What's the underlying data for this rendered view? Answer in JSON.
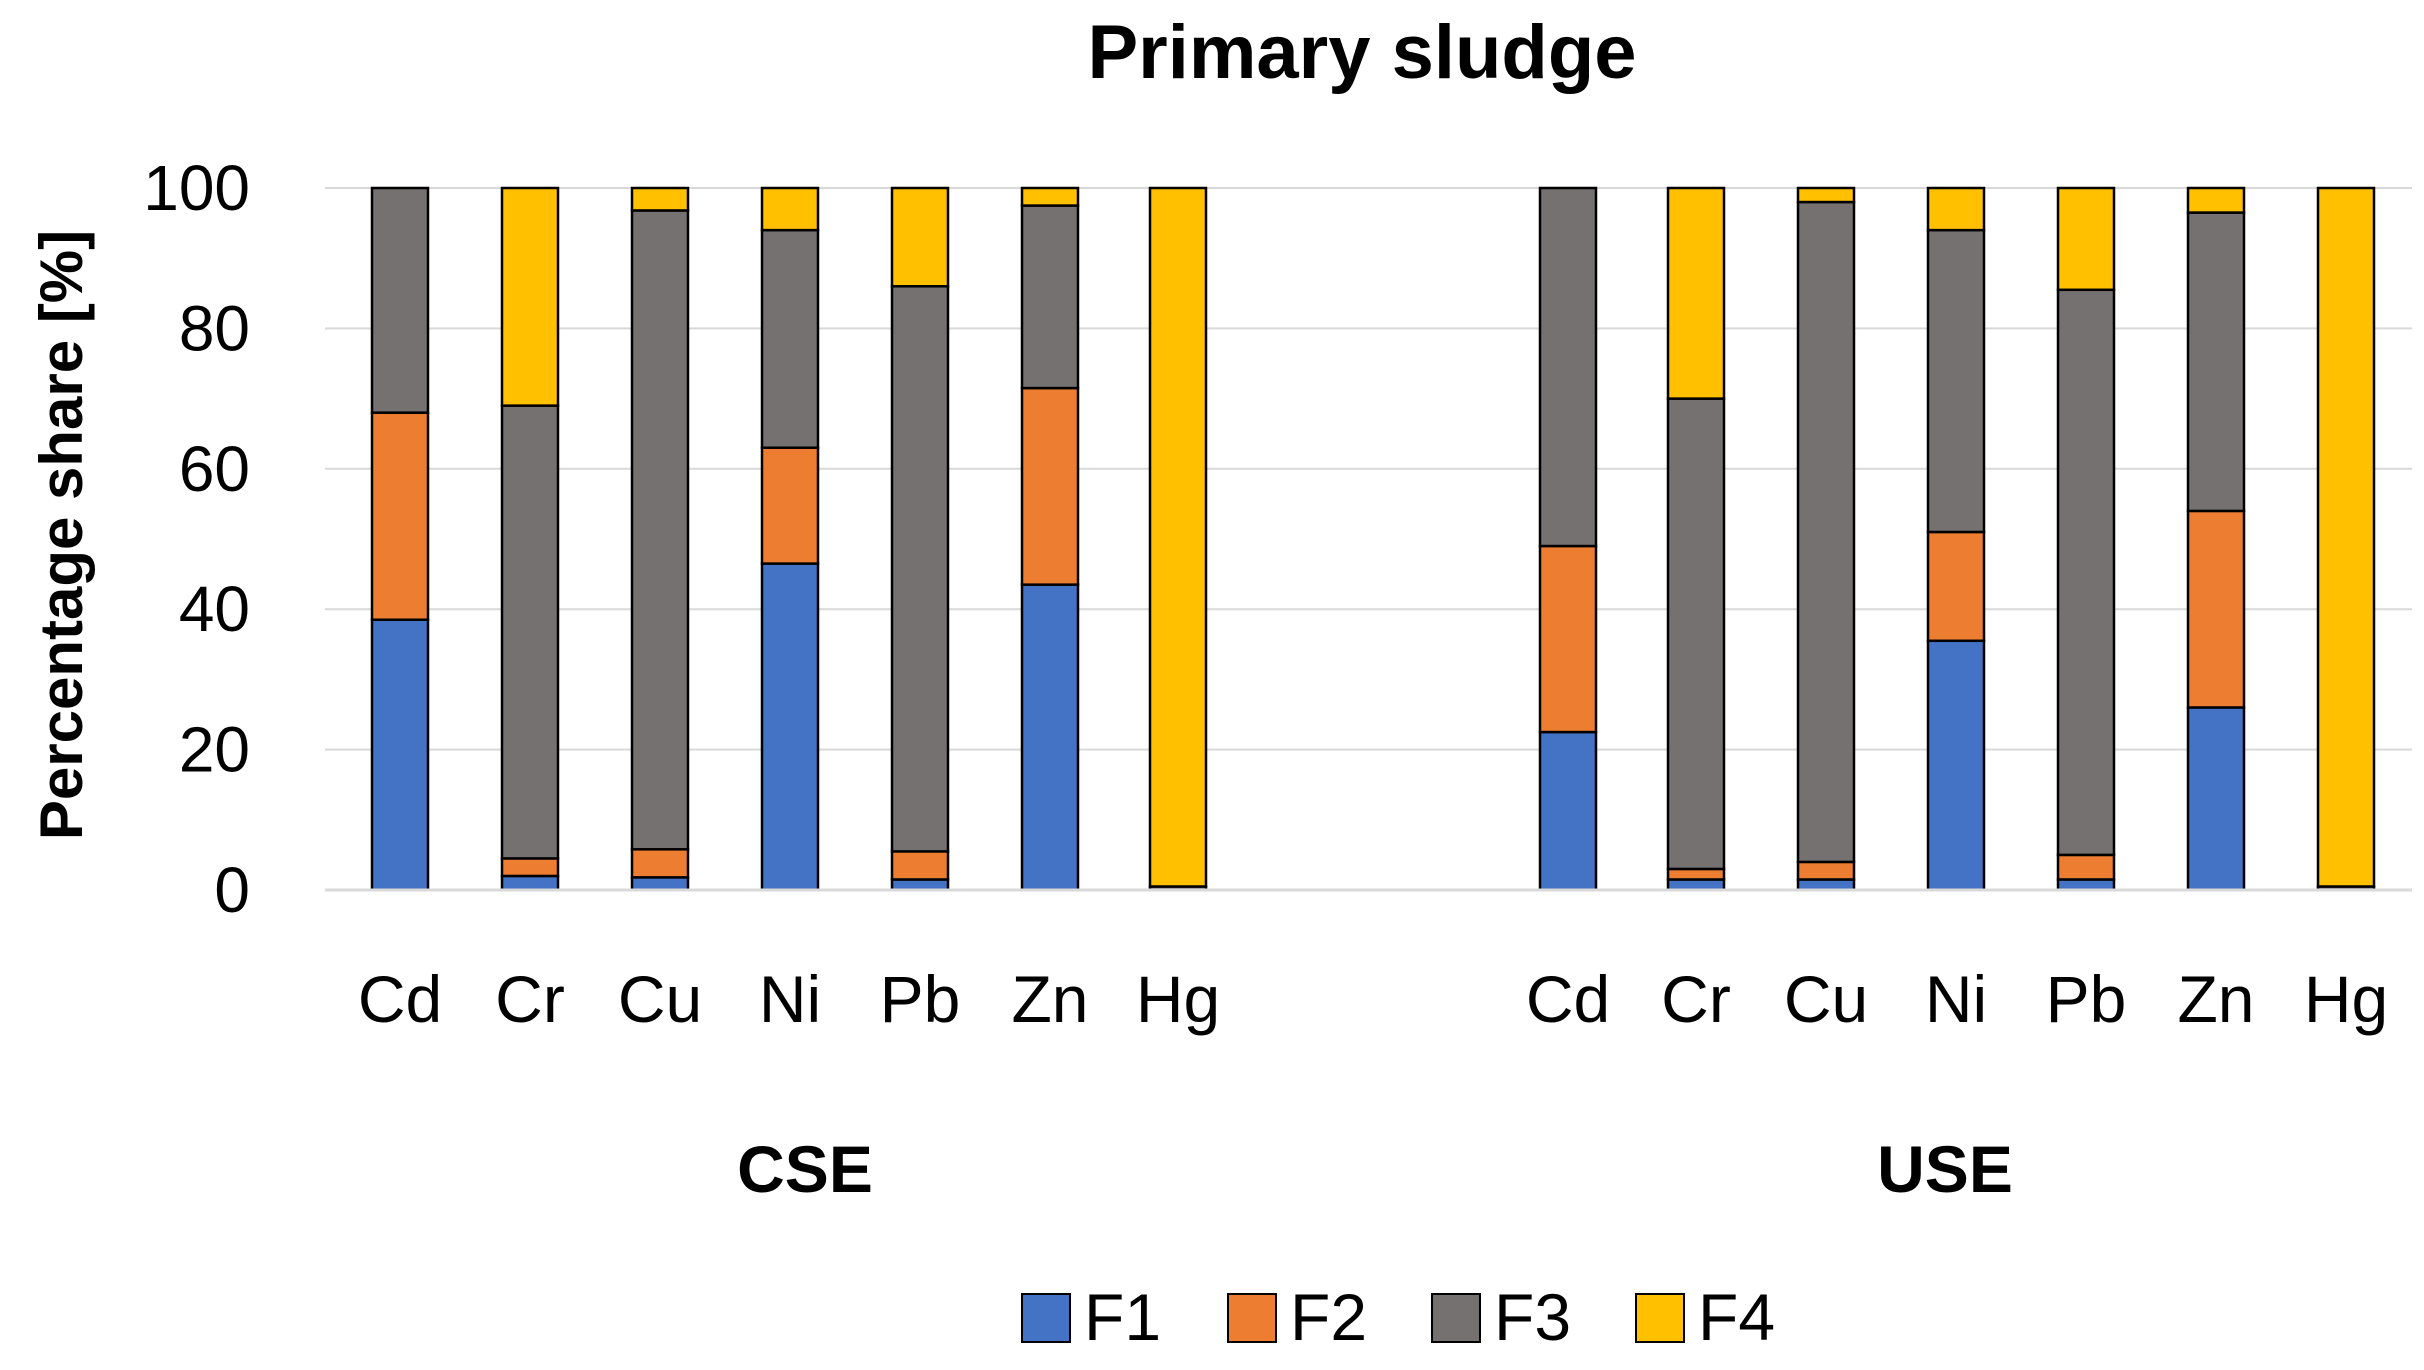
{
  "chart_data": {
    "type": "stacked_bar",
    "title": "Primary sludge",
    "ylabel": "Percentage share [%]",
    "xlabel": "",
    "ylim": [
      0,
      100
    ],
    "yticks": [
      "0",
      "20",
      "40",
      "60",
      "80",
      "100"
    ],
    "grid": true,
    "legend_position": "bottom",
    "groups": [
      {
        "name": "CSE",
        "categories": [
          "Cd",
          "Cr",
          "Cu",
          "Ni",
          "Pb",
          "Zn",
          "Hg"
        ]
      },
      {
        "name": "USE",
        "categories": [
          "Cd",
          "Cr",
          "Cu",
          "Ni",
          "Pb",
          "Zn",
          "Hg"
        ]
      }
    ],
    "series": [
      {
        "name": "F1",
        "color": "#4472C4",
        "values": [
          38.5,
          2.0,
          1.8,
          46.5,
          1.5,
          43.5,
          0.0,
          22.5,
          1.5,
          1.5,
          35.5,
          1.5,
          26.0,
          0.0
        ]
      },
      {
        "name": "F2",
        "color": "#ED7D31",
        "values": [
          29.5,
          2.5,
          4.0,
          16.5,
          4.0,
          28.0,
          0.0,
          26.5,
          1.5,
          2.5,
          15.5,
          3.5,
          28.0,
          0.0
        ]
      },
      {
        "name": "F3",
        "color": "#767171",
        "values": [
          32.0,
          64.5,
          91.0,
          31.0,
          80.5,
          26.0,
          0.5,
          51.0,
          67.0,
          94.0,
          43.0,
          80.5,
          42.5,
          0.5
        ]
      },
      {
        "name": "F4",
        "color": "#FFC000",
        "values": [
          0.0,
          31.0,
          3.2,
          6.0,
          14.0,
          2.5,
          99.5,
          0.0,
          30.0,
          2.0,
          6.0,
          14.5,
          3.5,
          99.5
        ]
      }
    ]
  }
}
